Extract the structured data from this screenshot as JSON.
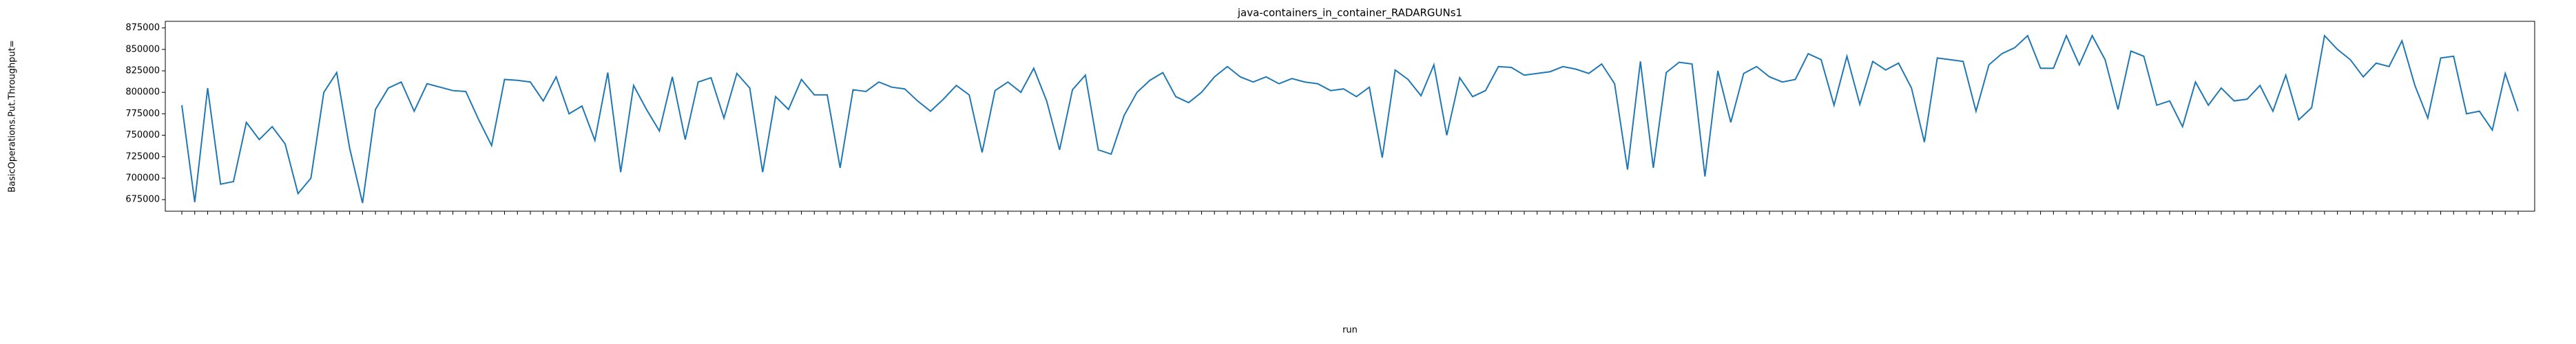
{
  "chart_data": {
    "type": "line",
    "title": "java-containers_in_container_RADARGUNs1",
    "x_label": "run",
    "y_label": "BasicOperations.Put.Throughput=",
    "color": "#1f77b4",
    "grid": false,
    "ylim": [
      661500,
      882700
    ],
    "yticks": [
      675000,
      700000,
      725000,
      750000,
      775000,
      800000,
      825000,
      850000,
      875000
    ],
    "categories": [
      null,
      null,
      null,
      null,
      null,
      null,
      null,
      null,
      null,
      null,
      null,
      null,
      null,
      null,
      null,
      null,
      null,
      null,
      null,
      null,
      null,
      null,
      null,
      null,
      null,
      null,
      null,
      null,
      null,
      null,
      null,
      null,
      null,
      null,
      null,
      null,
      null,
      null,
      null,
      null,
      null,
      null,
      null,
      null,
      null,
      null,
      null,
      null,
      null,
      null,
      null,
      null,
      null,
      null,
      null,
      null,
      null,
      null,
      null,
      null,
      null,
      null,
      null,
      null,
      null,
      null,
      null,
      null,
      null,
      null,
      null,
      null,
      null,
      null,
      null,
      null,
      null,
      null,
      null,
      null,
      null,
      null,
      null,
      null,
      null,
      null,
      null,
      null,
      null,
      null,
      null,
      null,
      null,
      null,
      null,
      null,
      null,
      null,
      null,
      null,
      null,
      null,
      null,
      null,
      null,
      null,
      null,
      null,
      null,
      null,
      null,
      null,
      null,
      null,
      null,
      null,
      null,
      null,
      null,
      null,
      null,
      null,
      null,
      null,
      null,
      null,
      null,
      null,
      null,
      null,
      null,
      null,
      null,
      null,
      null,
      null,
      null,
      null,
      null,
      null,
      null,
      null,
      null,
      null,
      null,
      null,
      null,
      null,
      null,
      null,
      null,
      null,
      null,
      null,
      null,
      null,
      null,
      null,
      null,
      null,
      null,
      null,
      null,
      null,
      null,
      null,
      null,
      null,
      null,
      null,
      null,
      null,
      null,
      null,
      null,
      null,
      null,
      null,
      null,
      null,
      null,
      null
    ],
    "values": [
      785000,
      672000,
      805000,
      693000,
      696000,
      765000,
      745000,
      760000,
      740000,
      682000,
      700000,
      800000,
      823000,
      735000,
      671000,
      780000,
      805000,
      812000,
      778000,
      810000,
      806000,
      802000,
      801000,
      768000,
      738000,
      815000,
      814000,
      812000,
      790000,
      818000,
      775000,
      784000,
      744000,
      823000,
      707000,
      808000,
      780000,
      755000,
      818000,
      745000,
      812000,
      817000,
      770000,
      822000,
      805000,
      707000,
      795000,
      780000,
      815000,
      797000,
      797000,
      712000,
      803000,
      801000,
      812000,
      806000,
      804000,
      790000,
      778000,
      792000,
      808000,
      797000,
      730000,
      802000,
      812000,
      800000,
      828000,
      790000,
      733000,
      803000,
      820000,
      733000,
      728000,
      773000,
      800000,
      814000,
      823000,
      795000,
      788000,
      800000,
      818000,
      830000,
      818000,
      812000,
      818000,
      810000,
      816000,
      812000,
      810000,
      802000,
      804000,
      795000,
      806000,
      724000,
      826000,
      815000,
      796000,
      832000,
      750000,
      817000,
      795000,
      802000,
      830000,
      829000,
      820000,
      822000,
      824000,
      830000,
      827000,
      822000,
      833000,
      810000,
      710000,
      836000,
      712000,
      823000,
      835000,
      833000,
      702000,
      825000,
      765000,
      822000,
      830000,
      818000,
      812000,
      815000,
      845000,
      838000,
      785000,
      842000,
      786000,
      836000,
      826000,
      834000,
      805000,
      742000,
      840000,
      838000,
      836000,
      778000,
      832000,
      845000,
      852000,
      866000,
      828000,
      828000,
      866000,
      832000,
      866000,
      838000,
      780000,
      848000,
      842000,
      785000,
      790000,
      760000,
      812000,
      785000,
      805000,
      790000,
      792000,
      808000,
      778000,
      820000,
      768000,
      782000,
      866000,
      850000,
      838000,
      818000,
      834000,
      830000,
      860000,
      808000,
      770000,
      840000,
      842000,
      775000,
      778000,
      756000,
      822000,
      778000
    ]
  }
}
